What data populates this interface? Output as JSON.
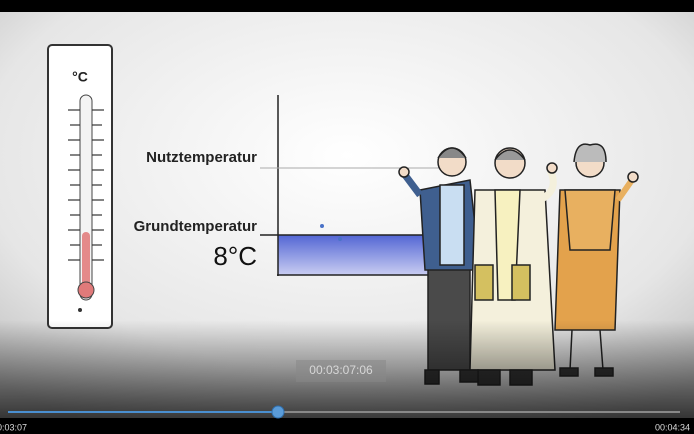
{
  "thermometer": {
    "unit": "°C"
  },
  "diagram": {
    "labels": [
      "Nutztemperatur",
      "Grundtemperatur"
    ],
    "value_label": "8°C"
  },
  "player": {
    "overlay_time": "00:03:07:06",
    "current_time": "0:03:07",
    "total_time": "00:04:34"
  }
}
